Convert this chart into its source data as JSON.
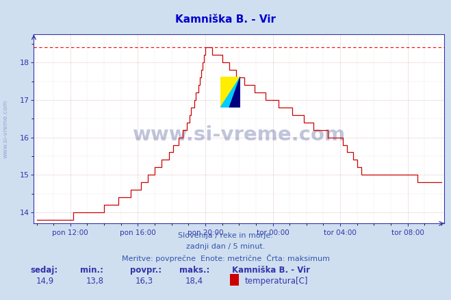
{
  "title": "Kamniška B. - Vir",
  "title_color": "#0000cc",
  "title_fontsize": 11,
  "bg_color": "#d0dff0",
  "plot_bg_color": "#ffffff",
  "line_color": "#cc0000",
  "dashed_line_color": "#ff0000",
  "grid_color_major": "#cc9999",
  "grid_color_minor": "#ddbbbb",
  "axis_color": "#3333aa",
  "tick_color": "#3333aa",
  "ylim": [
    13.7,
    18.75
  ],
  "yticks": [
    14,
    15,
    16,
    17,
    18
  ],
  "xtick_labels": [
    "pon 12:00",
    "pon 16:00",
    "pon 20:00",
    "tor 00:00",
    "tor 04:00",
    "tor 08:00"
  ],
  "footer_lines": [
    "Slovenija / reke in morje.",
    "zadnji dan / 5 minut.",
    "Meritve: povprečne  Enote: metrične  Črta: maksimum"
  ],
  "footer_color": "#3355aa",
  "footer_fontsize": 8,
  "stats_labels": [
    "sedaj:",
    "min.:",
    "povpr.:",
    "maks.:"
  ],
  "stats_values": [
    "14,9",
    "13,8",
    "16,3",
    "18,4"
  ],
  "legend_station": "Kamniška B. - Vir",
  "legend_label": "temperatura[C]",
  "legend_color": "#cc0000",
  "watermark_text": "www.si-vreme.com",
  "watermark_color": "#203080",
  "watermark_alpha": 0.28,
  "side_label": "www.si-vreme.com",
  "side_label_color": "#4466aa",
  "side_label_alpha": 0.45,
  "max_line_y": 18.4,
  "xlim_left": 0,
  "xlim_right": 288
}
